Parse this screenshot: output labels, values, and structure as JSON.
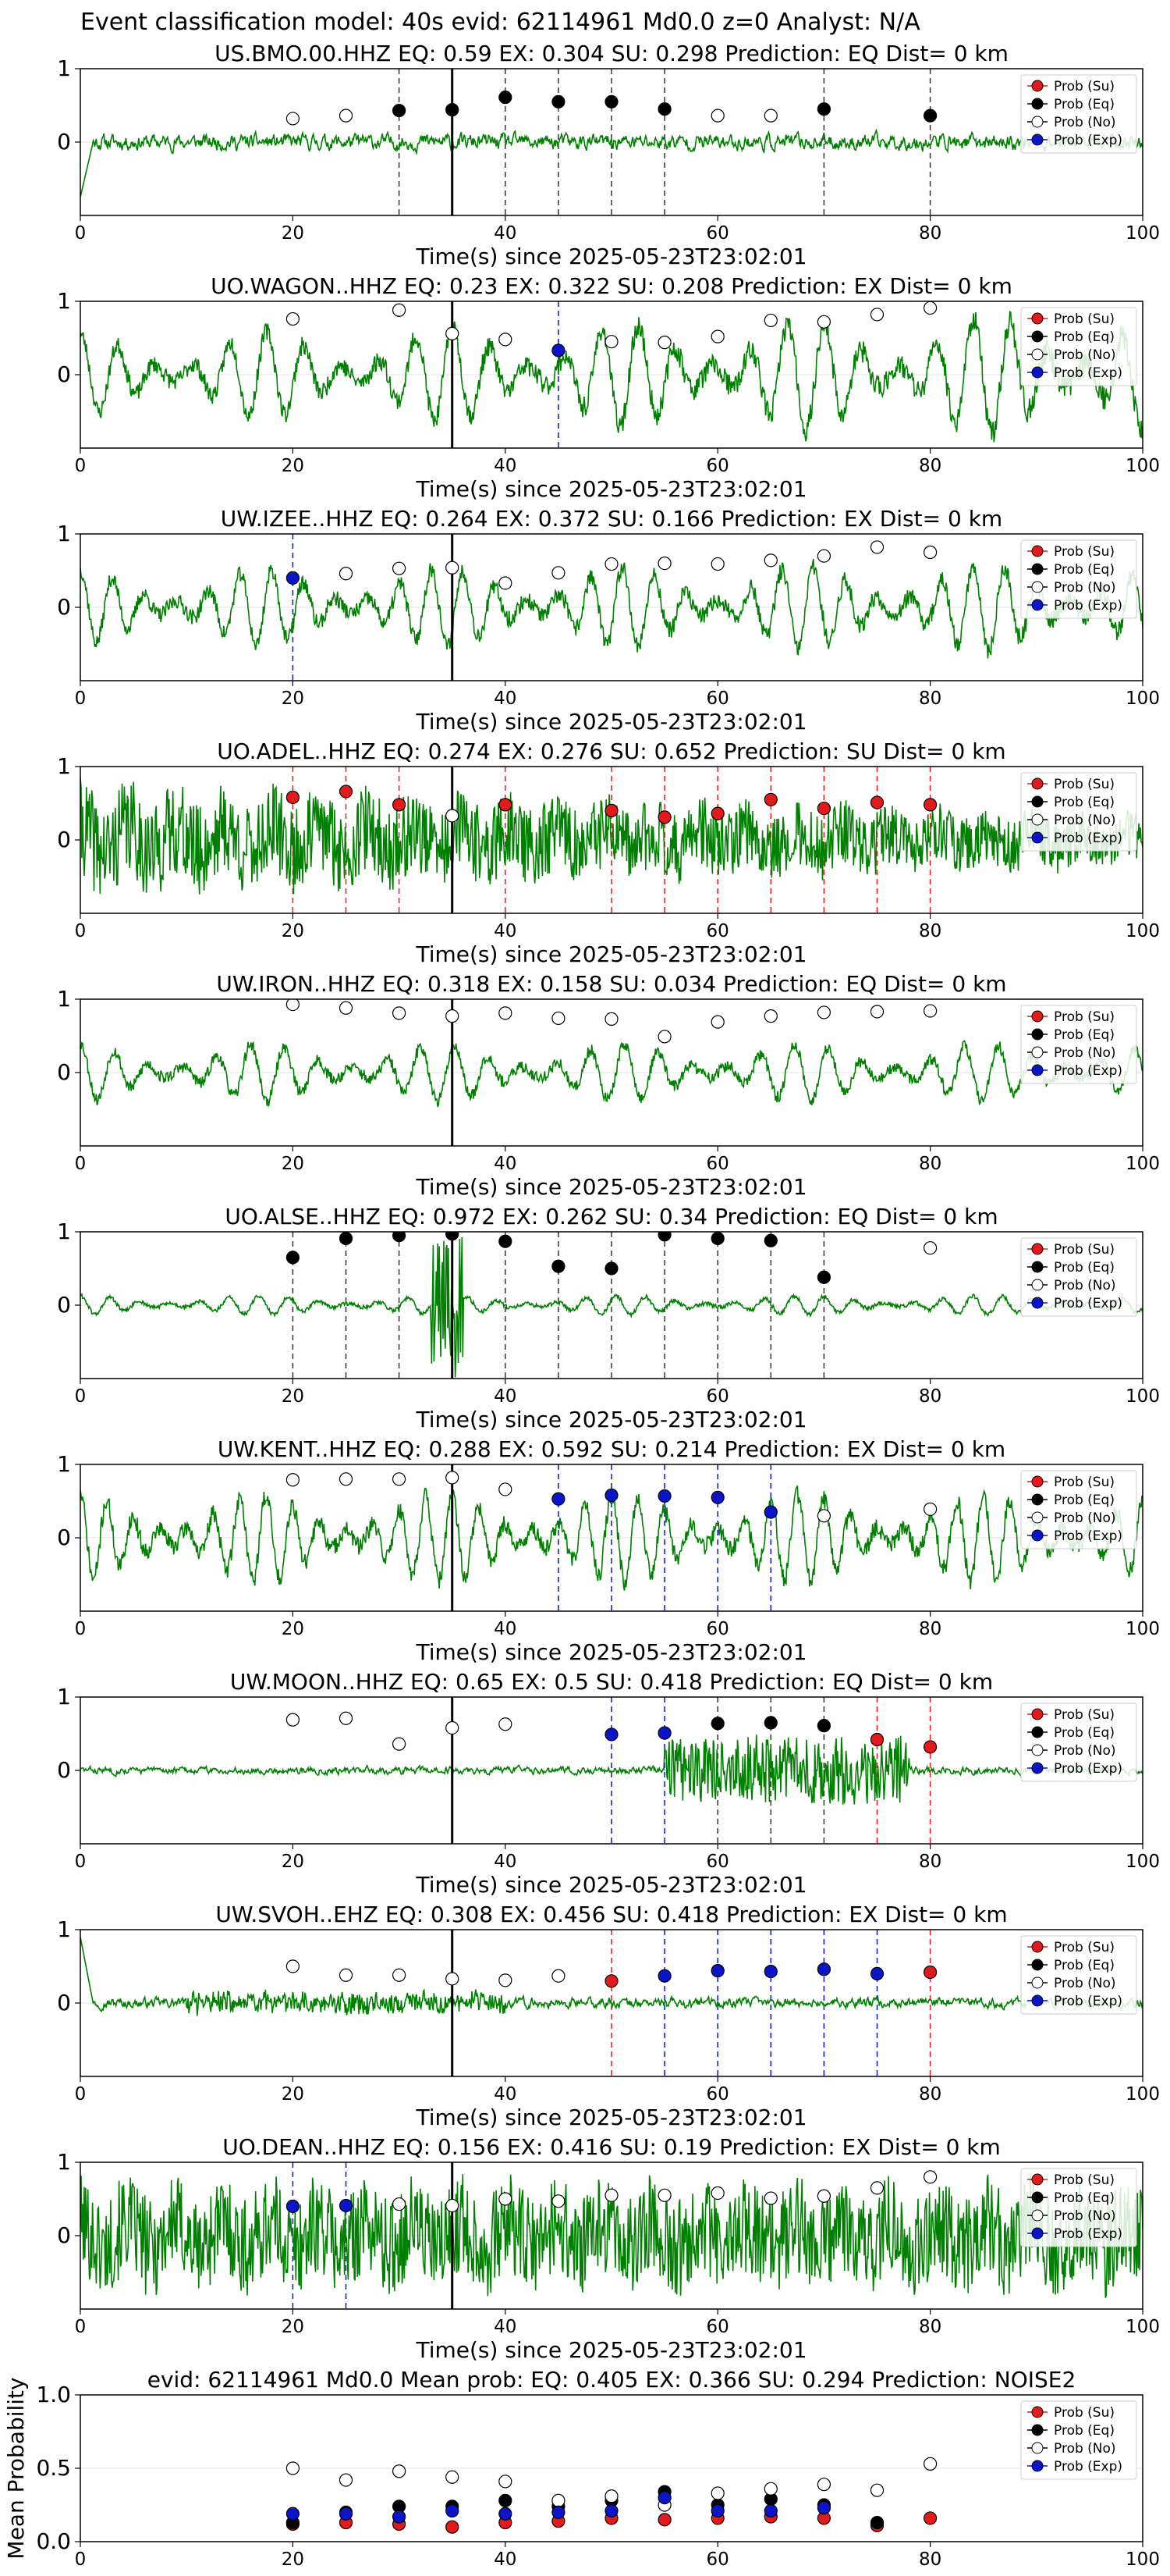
{
  "figure": {
    "suptitle": "Event classification model: 40s evid: 62114961 Md0.0 z=0 Analyst: N/A",
    "xlabel": "Time(s) since 2025-05-23T23:02:01"
  },
  "legend": {
    "entries": [
      {
        "label": "Prob (Su)",
        "color": "#e31a1c",
        "fill": true
      },
      {
        "label": "Prob (Eq)",
        "color": "#000000",
        "fill": true
      },
      {
        "label": "Prob (No)",
        "color": "#000000",
        "fill": false
      },
      {
        "label": "Prob (Exp)",
        "color": "#0a14c8",
        "fill": true
      }
    ]
  },
  "colors": {
    "waveform": "#008000",
    "su": "#e31a1c",
    "eq": "#000000",
    "exp": "#0a14c8",
    "no_face": "#ffffff",
    "origin_line": "#000000",
    "grid": "#e6e6e6"
  },
  "chart_data": [
    {
      "type": "line",
      "title": "US.BMO.00.HHZ   EQ: 0.59  EX: 0.304  SU: 0.298   Prediction: EQ    Dist= 0 km",
      "xlim": [
        0,
        100
      ],
      "ylim": [
        -1,
        1
      ],
      "xticks": [
        0,
        20,
        40,
        60,
        80,
        100
      ],
      "yticks": [
        0,
        1
      ],
      "origin": 35,
      "waveform": {
        "seed": 11,
        "amp": 0.11,
        "style": "noise",
        "start_spike": -0.75
      },
      "probs": {
        "times": [
          20,
          25,
          30,
          35,
          40,
          45,
          50,
          55,
          60,
          65,
          70,
          80
        ],
        "labels": [
          "No",
          "No",
          "Eq",
          "Eq",
          "Eq",
          "Eq",
          "Eq",
          "Eq",
          "No",
          "No",
          "Eq",
          "Eq"
        ],
        "values": [
          0.32,
          0.36,
          0.43,
          0.44,
          0.61,
          0.55,
          0.55,
          0.45,
          0.36,
          0.36,
          0.45,
          0.36
        ]
      },
      "legend": "upper right",
      "grid": true
    },
    {
      "type": "line",
      "title": "UO.WAGON..HHZ   EQ: 0.23  EX: 0.322  SU: 0.208   Prediction: EX    Dist= 0 km",
      "xlim": [
        0,
        100
      ],
      "ylim": [
        -1,
        1
      ],
      "xticks": [
        0,
        20,
        40,
        60,
        80,
        100
      ],
      "yticks": [
        0,
        1
      ],
      "origin": 35,
      "waveform": {
        "seed": 23,
        "amp": 0.45,
        "style": "wave",
        "period": 3.5,
        "growth": 0.6
      },
      "probs": {
        "times": [
          20,
          30,
          35,
          40,
          45,
          50,
          55,
          60,
          65,
          70,
          75,
          80
        ],
        "labels": [
          "No",
          "No",
          "No",
          "No",
          "Exp",
          "No",
          "No",
          "No",
          "No",
          "No",
          "No",
          "No"
        ],
        "values": [
          0.76,
          0.88,
          0.56,
          0.48,
          0.33,
          0.45,
          0.44,
          0.52,
          0.74,
          0.72,
          0.82,
          0.91
        ]
      },
      "legend": "upper right",
      "grid": true
    },
    {
      "type": "line",
      "title": "UW.IZEE..HHZ   EQ: 0.264  EX: 0.372  SU: 0.166   Prediction: EX    Dist= 0 km",
      "xlim": [
        0,
        100
      ],
      "ylim": [
        -1,
        1
      ],
      "xticks": [
        0,
        20,
        40,
        60,
        80,
        100
      ],
      "yticks": [
        0,
        1
      ],
      "origin": 35,
      "waveform": {
        "seed": 37,
        "amp": 0.42,
        "style": "wave",
        "period": 3.0,
        "growth": 0.2
      },
      "probs": {
        "times": [
          20,
          25,
          30,
          35,
          40,
          45,
          50,
          55,
          60,
          65,
          70,
          75,
          80
        ],
        "labels": [
          "Exp",
          "No",
          "No",
          "No",
          "No",
          "No",
          "No",
          "No",
          "No",
          "No",
          "No",
          "No",
          "No"
        ],
        "values": [
          0.4,
          0.46,
          0.53,
          0.54,
          0.33,
          0.47,
          0.59,
          0.6,
          0.59,
          0.64,
          0.7,
          0.82,
          0.75
        ]
      },
      "legend": "upper right",
      "grid": true
    },
    {
      "type": "line",
      "title": "UO.ADEL..HHZ   EQ: 0.274  EX: 0.276  SU: 0.652   Prediction: SU    Dist= 0 km",
      "xlim": [
        0,
        100
      ],
      "ylim": [
        -1,
        1
      ],
      "xticks": [
        0,
        20,
        40,
        60,
        80,
        100
      ],
      "yticks": [
        0,
        1
      ],
      "origin": 35,
      "waveform": {
        "seed": 41,
        "amp": 0.45,
        "style": "noisy",
        "decay": 0.5
      },
      "probs": {
        "times": [
          20,
          25,
          30,
          35,
          40,
          50,
          55,
          60,
          65,
          70,
          75,
          80
        ],
        "labels": [
          "Su",
          "Su",
          "Su",
          "No",
          "Su",
          "Su",
          "Su",
          "Su",
          "Su",
          "Su",
          "Su",
          "Su"
        ],
        "values": [
          0.58,
          0.66,
          0.48,
          0.33,
          0.48,
          0.4,
          0.31,
          0.36,
          0.55,
          0.43,
          0.51,
          0.48
        ]
      },
      "legend": "upper right",
      "grid": true
    },
    {
      "type": "line",
      "title": "UW.IRON..HHZ   EQ: 0.318  EX: 0.158  SU: 0.034   Prediction: EQ    Dist= 0 km",
      "xlim": [
        0,
        100
      ],
      "ylim": [
        -1,
        1
      ],
      "xticks": [
        0,
        20,
        40,
        60,
        80,
        100
      ],
      "yticks": [
        0,
        1
      ],
      "origin": 35,
      "waveform": {
        "seed": 53,
        "amp": 0.33,
        "style": "wave",
        "period": 3.2,
        "growth": 0.0
      },
      "probs": {
        "times": [
          20,
          25,
          30,
          35,
          40,
          45,
          50,
          55,
          60,
          65,
          70,
          75,
          80
        ],
        "labels": [
          "No",
          "No",
          "No",
          "No",
          "No",
          "No",
          "No",
          "No",
          "No",
          "No",
          "No",
          "No",
          "No"
        ],
        "values": [
          0.93,
          0.88,
          0.81,
          0.77,
          0.81,
          0.74,
          0.73,
          0.49,
          0.69,
          0.77,
          0.82,
          0.83,
          0.84
        ]
      },
      "legend": "upper right",
      "grid": true
    },
    {
      "type": "line",
      "title": "UO.ALSE..HHZ   EQ: 0.972  EX: 0.262  SU: 0.34   Prediction: EQ    Dist= 0 km",
      "xlim": [
        0,
        100
      ],
      "ylim": [
        -1,
        1
      ],
      "xticks": [
        0,
        20,
        40,
        60,
        80,
        100
      ],
      "yticks": [
        0,
        1
      ],
      "origin": 35,
      "waveform": {
        "seed": 61,
        "amp": 0.11,
        "style": "wave",
        "period": 2.8,
        "growth": 0.0,
        "burst": [
          33,
          36,
          0.9
        ]
      },
      "probs": {
        "times": [
          20,
          25,
          30,
          35,
          40,
          45,
          50,
          55,
          60,
          65,
          70,
          80
        ],
        "labels": [
          "Eq",
          "Eq",
          "Eq",
          "Eq",
          "Eq",
          "Eq",
          "Eq",
          "Eq",
          "Eq",
          "Eq",
          "Eq",
          "No"
        ],
        "values": [
          0.65,
          0.91,
          0.95,
          0.97,
          0.87,
          0.53,
          0.5,
          0.96,
          0.91,
          0.88,
          0.38,
          0.78
        ]
      },
      "legend": "upper right",
      "grid": true
    },
    {
      "type": "line",
      "title": "UW.KENT..HHZ   EQ: 0.288  EX: 0.592  SU: 0.214   Prediction: EX    Dist= 0 km",
      "xlim": [
        0,
        100
      ],
      "ylim": [
        -1,
        1
      ],
      "xticks": [
        0,
        20,
        40,
        60,
        80,
        100
      ],
      "yticks": [
        0,
        1
      ],
      "origin": 35,
      "waveform": {
        "seed": 71,
        "amp": 0.5,
        "style": "wave",
        "period": 2.5,
        "growth": 0.0
      },
      "probs": {
        "times": [
          20,
          25,
          30,
          35,
          40,
          45,
          50,
          55,
          60,
          65,
          70,
          80
        ],
        "labels": [
          "No",
          "No",
          "No",
          "No",
          "No",
          "Exp",
          "Exp",
          "Exp",
          "Exp",
          "Exp",
          "No",
          "No"
        ],
        "values": [
          0.79,
          0.8,
          0.8,
          0.82,
          0.66,
          0.53,
          0.58,
          0.57,
          0.55,
          0.35,
          0.3,
          0.39
        ]
      },
      "legend": "upper right",
      "grid": true
    },
    {
      "type": "line",
      "title": "UW.MOON..HHZ   EQ: 0.65  EX: 0.5  SU: 0.418   Prediction: EQ    Dist= 0 km",
      "xlim": [
        0,
        100
      ],
      "ylim": [
        -1,
        1
      ],
      "xticks": [
        0,
        20,
        40,
        60,
        80,
        100
      ],
      "yticks": [
        0,
        1
      ],
      "origin": 35,
      "waveform": {
        "seed": 83,
        "amp": 0.05,
        "style": "noise",
        "burst": [
          55,
          78,
          0.45
        ]
      },
      "probs": {
        "times": [
          20,
          25,
          30,
          35,
          40,
          50,
          55,
          60,
          65,
          70,
          75,
          80
        ],
        "labels": [
          "No",
          "No",
          "No",
          "No",
          "No",
          "Exp",
          "Exp",
          "Eq",
          "Eq",
          "Eq",
          "Su",
          "Su"
        ],
        "values": [
          0.69,
          0.71,
          0.36,
          0.58,
          0.63,
          0.49,
          0.51,
          0.64,
          0.65,
          0.61,
          0.42,
          0.32
        ]
      },
      "legend": "upper right",
      "grid": true
    },
    {
      "type": "line",
      "title": "UW.SVOH..EHZ   EQ: 0.308  EX: 0.456  SU: 0.418   Prediction: EX    Dist= 0 km",
      "xlim": [
        0,
        100
      ],
      "ylim": [
        -1,
        1
      ],
      "xticks": [
        0,
        20,
        40,
        60,
        80,
        100
      ],
      "yticks": [
        0,
        1
      ],
      "origin": 35,
      "waveform": {
        "seed": 97,
        "amp": 0.07,
        "style": "noise",
        "start_spike": 0.9,
        "burst": [
          10,
          40,
          0.12
        ]
      },
      "probs": {
        "times": [
          20,
          25,
          30,
          35,
          40,
          45,
          50,
          55,
          60,
          65,
          70,
          75,
          80
        ],
        "labels": [
          "No",
          "No",
          "No",
          "No",
          "No",
          "No",
          "Su",
          "Exp",
          "Exp",
          "Exp",
          "Exp",
          "Exp",
          "Su"
        ],
        "values": [
          0.5,
          0.38,
          0.38,
          0.33,
          0.31,
          0.37,
          0.3,
          0.37,
          0.44,
          0.43,
          0.46,
          0.4,
          0.42
        ]
      },
      "legend": "upper right",
      "grid": true
    },
    {
      "type": "line",
      "title": "UO.DEAN..HHZ   EQ: 0.156  EX: 0.416  SU: 0.19   Prediction: EX    Dist= 0 km",
      "xlim": [
        0,
        100
      ],
      "ylim": [
        -1,
        1
      ],
      "xticks": [
        0,
        20,
        40,
        60,
        80,
        100
      ],
      "yticks": [
        0,
        1
      ],
      "origin": 35,
      "waveform": {
        "seed": 101,
        "amp": 0.45,
        "style": "noisy",
        "decay": 0.0
      },
      "probs": {
        "times": [
          20,
          25,
          30,
          35,
          40,
          45,
          50,
          55,
          60,
          65,
          70,
          75,
          80
        ],
        "labels": [
          "Exp",
          "Exp",
          "No",
          "No",
          "No",
          "No",
          "No",
          "No",
          "No",
          "No",
          "No",
          "No",
          "No"
        ],
        "values": [
          0.4,
          0.41,
          0.43,
          0.41,
          0.5,
          0.47,
          0.55,
          0.55,
          0.58,
          0.51,
          0.54,
          0.65,
          0.8
        ]
      },
      "legend": "upper right",
      "grid": true
    },
    {
      "type": "scatter",
      "title": "evid: 62114961   Md0.0   Mean prob:   EQ: 0.405  EX: 0.366  SU: 0.294   Prediction: NOISE2",
      "ylabel": "Mean Probability",
      "xlim": [
        0,
        100
      ],
      "ylim": [
        0,
        1
      ],
      "xticks": [
        0,
        20,
        40,
        60,
        80,
        100
      ],
      "yticks": [
        0,
        0.5,
        1
      ],
      "ytick_labels": [
        "0.0",
        "0.5",
        "1.0"
      ],
      "x": [
        20,
        25,
        30,
        35,
        40,
        45,
        50,
        55,
        60,
        65,
        70,
        75,
        80
      ],
      "series": [
        {
          "name": "Prob (Su)",
          "values": [
            0.12,
            0.13,
            0.12,
            0.1,
            0.13,
            0.14,
            0.16,
            0.15,
            0.16,
            0.17,
            0.16,
            0.11,
            0.16
          ]
        },
        {
          "name": "Prob (Eq)",
          "values": [
            0.13,
            0.2,
            0.24,
            0.24,
            0.28,
            0.24,
            0.28,
            0.34,
            0.25,
            0.29,
            0.25,
            0.13,
            null
          ]
        },
        {
          "name": "Prob (No)",
          "values": [
            0.5,
            0.42,
            0.48,
            0.44,
            0.41,
            0.28,
            0.31,
            0.25,
            0.33,
            0.36,
            0.39,
            0.35,
            0.53
          ]
        },
        {
          "name": "Prob (Exp)",
          "values": [
            0.19,
            0.19,
            0.17,
            0.21,
            0.19,
            0.2,
            0.21,
            0.3,
            0.21,
            0.21,
            0.23,
            null,
            null
          ]
        }
      ],
      "legend": "upper right",
      "grid": true
    }
  ]
}
